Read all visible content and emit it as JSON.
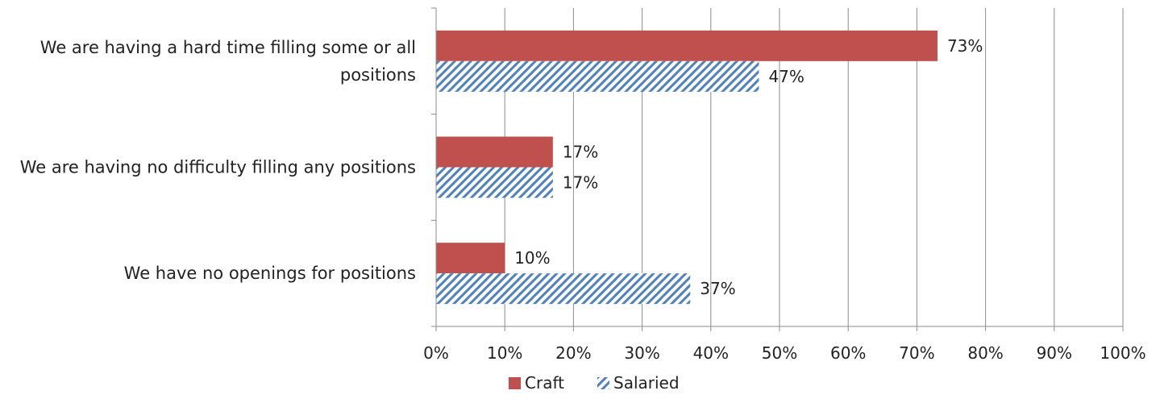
{
  "chart_data": {
    "type": "bar",
    "orientation": "horizontal",
    "categories": [
      "We are having a hard time filling some or all positions",
      "We are having no difficulty filling any positions",
      "We have no openings for positions"
    ],
    "category_lines": [
      [
        "We are having a hard time filling some or all",
        "positions"
      ],
      [
        "We are having no difficulty filling any positions"
      ],
      [
        "We have no openings for positions"
      ]
    ],
    "series": [
      {
        "name": "Craft",
        "values": [
          73,
          17,
          10
        ],
        "labels": [
          "73%",
          "17%",
          "10%"
        ],
        "color": "#c0504d",
        "pattern": "solid"
      },
      {
        "name": "Salaried",
        "values": [
          47,
          17,
          37
        ],
        "labels": [
          "47%",
          "17%",
          "37%"
        ],
        "color": "#4f81bd",
        "pattern": "diagonal-hatch"
      }
    ],
    "x_ticks": [
      "0%",
      "10%",
      "20%",
      "30%",
      "40%",
      "50%",
      "60%",
      "70%",
      "80%",
      "90%",
      "100%"
    ],
    "xlim": [
      0,
      100
    ],
    "grid": true,
    "legend_position": "bottom"
  }
}
